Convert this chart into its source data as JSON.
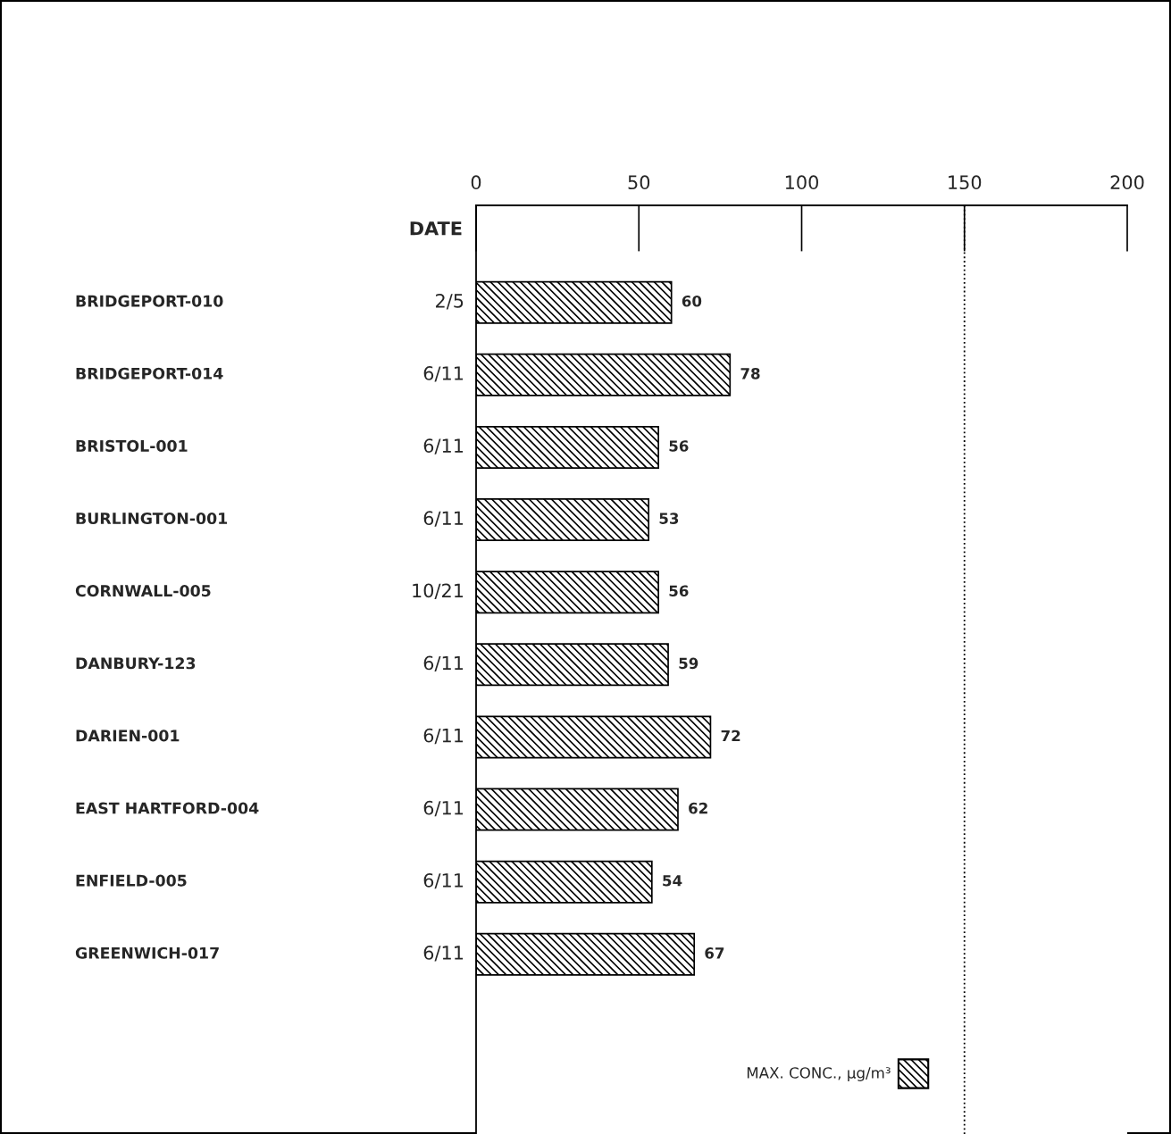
{
  "chart_data": {
    "type": "bar",
    "orientation": "horizontal",
    "categories": [
      "BRIDGEPORT-010",
      "BRIDGEPORT-014",
      "BRISTOL-001",
      "BURLINGTON-001",
      "CORNWALL-005",
      "DANBURY-123",
      "DARIEN-001",
      "EAST HARTFORD-004",
      "ENFIELD-005",
      "GREENWICH-017"
    ],
    "y2label": "DATE",
    "y2_categories": [
      "2/5",
      "6/11",
      "6/11",
      "6/11",
      "10/21",
      "6/11",
      "6/11",
      "6/11",
      "6/11",
      "6/11"
    ],
    "series": [
      {
        "name": "MAX. CONC., µg/m³",
        "color": "#000000",
        "axis": "x2",
        "values": [
          60,
          78,
          56,
          53,
          56,
          59,
          72,
          62,
          54,
          67
        ]
      }
    ],
    "data_labels": true,
    "x2lim": [
      0,
      200
    ],
    "x2ticks": [
      0,
      50,
      100,
      150,
      200
    ],
    "ref_lines": [
      {
        "axis": "x2",
        "value": 150,
        "line_style": "dotted"
      }
    ],
    "grid": false,
    "legend": "bottom right"
  }
}
